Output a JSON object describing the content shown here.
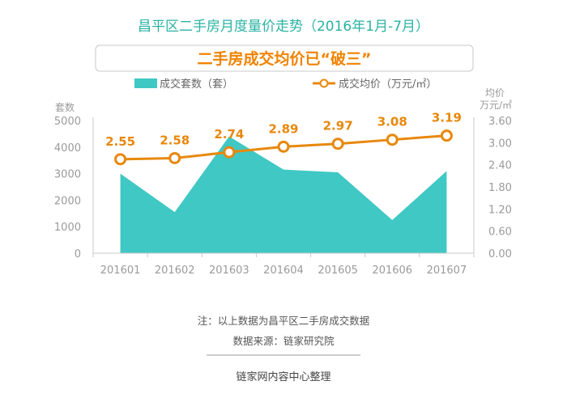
{
  "title": "昌平区二手房月度量价走势（2016年1月-7月）",
  "subtitle": "二手房成交均价已“破三”",
  "note": "注：以上数据为昌平区二手房成交数据",
  "source": "数据来源：链家研究院",
  "footer": "链家网内容中心整理",
  "colors": {
    "area": "#40c8c4",
    "line": "#e8880c",
    "title": "#2bb3a4",
    "subtitle": "#f08300"
  },
  "chart_data": {
    "type": "area+line",
    "categories": [
      "201601",
      "201602",
      "201603",
      "201604",
      "201605",
      "201606",
      "201607"
    ],
    "series": [
      {
        "name": "成交套数（套）",
        "type": "area",
        "axis": "left",
        "values": [
          3000,
          1550,
          4400,
          3150,
          3050,
          1250,
          3100
        ]
      },
      {
        "name": "成交均价（万元/㎡）",
        "type": "line",
        "axis": "right",
        "values": [
          2.55,
          2.58,
          2.74,
          2.89,
          2.97,
          3.08,
          3.19
        ],
        "labels": [
          "2.55",
          "2.58",
          "2.74",
          "2.89",
          "2.97",
          "3.08",
          "3.19"
        ]
      }
    ],
    "left_axis": {
      "unit": "套数",
      "ticks": [
        "0",
        "1000",
        "2000",
        "3000",
        "4000",
        "5000"
      ],
      "range": [
        0,
        5000
      ]
    },
    "right_axis": {
      "unit_line1": "均价",
      "unit_line2": "万元/㎡",
      "ticks": [
        "0.00",
        "0.60",
        "1.20",
        "1.80",
        "2.40",
        "3.00",
        "3.60"
      ],
      "range": [
        0,
        3.6
      ]
    },
    "legend_position": "top",
    "grid": false
  }
}
